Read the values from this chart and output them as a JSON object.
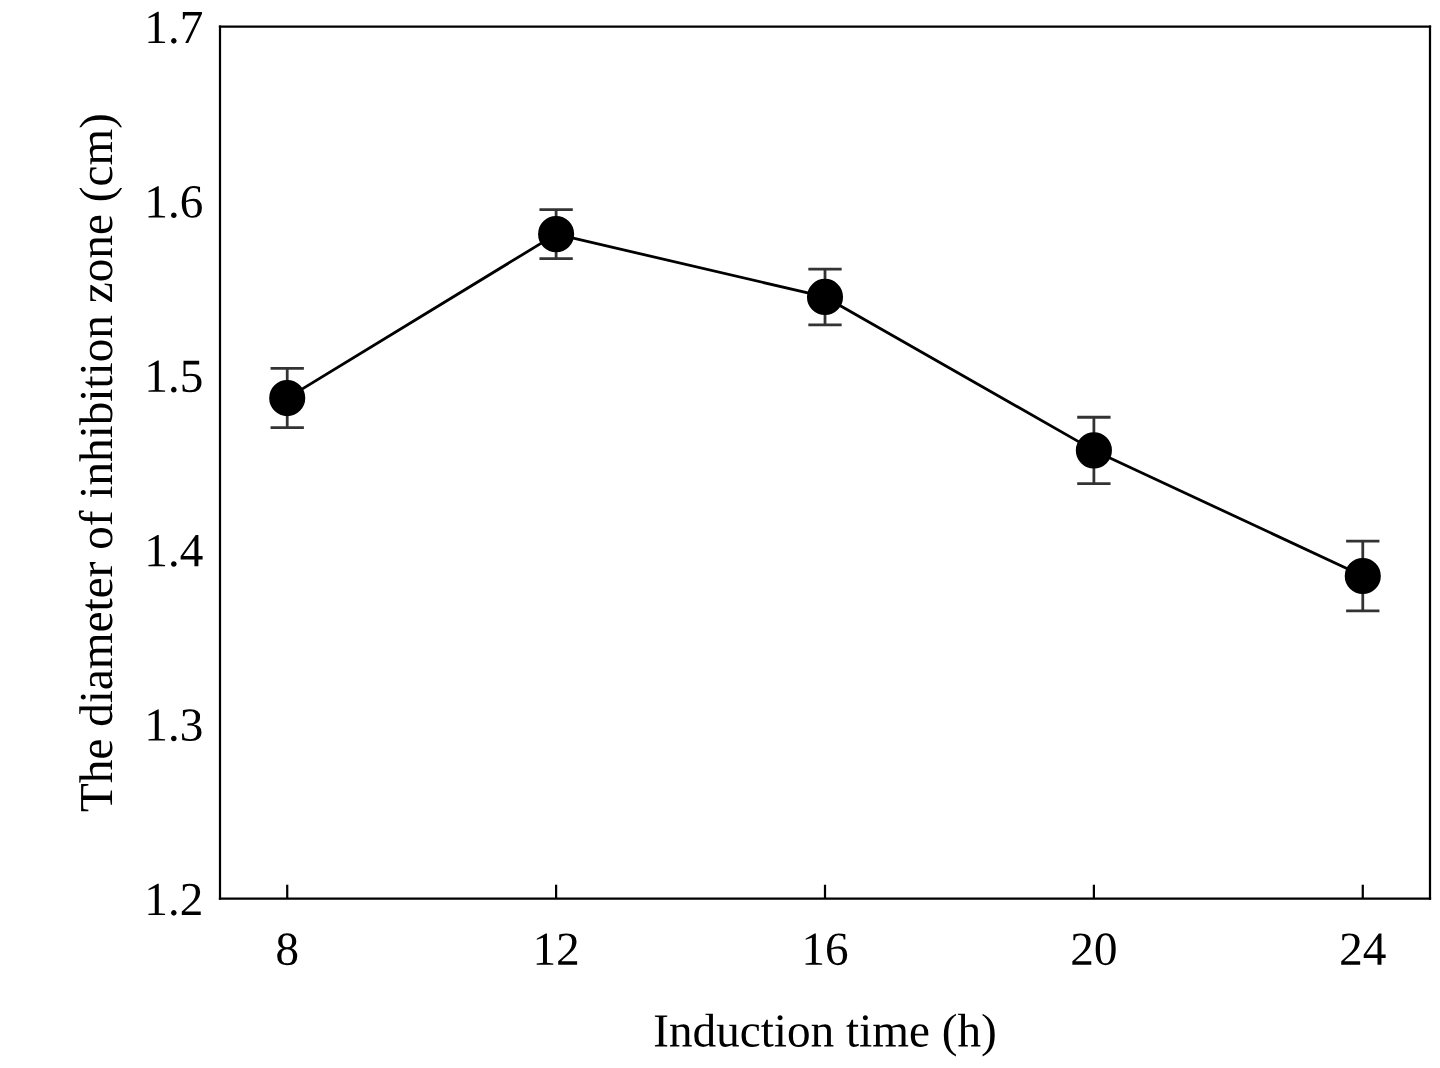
{
  "chart_data": {
    "type": "line",
    "xlabel": "Induction time (h)",
    "ylabel": "The diameter of inhibition zone (cm)",
    "x": [
      8,
      12,
      16,
      20,
      24
    ],
    "series": [
      {
        "color": "#000000",
        "values": [
          1.487,
          1.581,
          1.545,
          1.457,
          1.385
        ],
        "errors": [
          0.017,
          0.014,
          0.016,
          0.019,
          0.02
        ]
      }
    ],
    "xlim": [
      7,
      25
    ],
    "xticks": [
      8,
      12,
      16,
      20,
      24
    ],
    "ylim": [
      1.2,
      1.7
    ],
    "yticks": [
      1.2,
      1.3,
      1.4,
      1.5,
      1.6,
      1.7
    ],
    "marker": "circle",
    "line_style": "solid",
    "grid": false,
    "legend": false
  }
}
